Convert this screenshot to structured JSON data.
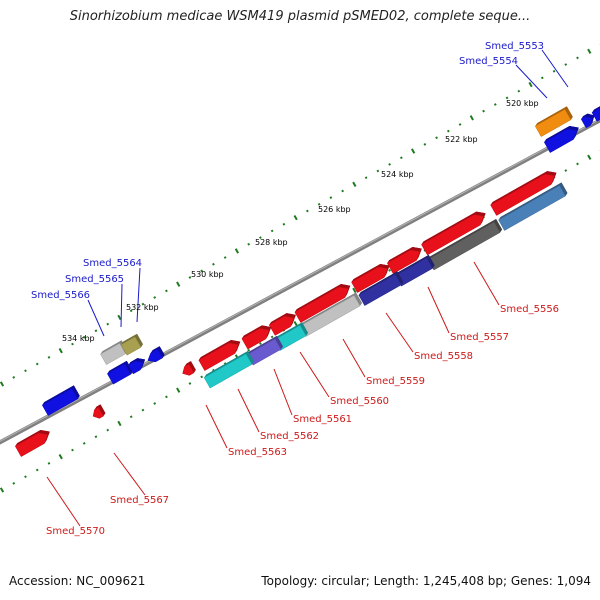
{
  "title": "Sinorhizobium medicae WSM419 plasmid pSMED02, complete seque...",
  "footer": {
    "accession": "Accession: NC_009621",
    "summary": "Topology: circular; Length: 1,245,408 bp; Genes: 1,094"
  },
  "colors": {
    "backbone": "#808080",
    "tick": "#1e7a1e",
    "cds": "#e8101a",
    "blue": "#1010e0",
    "blue_label": "#1a1acc",
    "red_label": "#cc1a1a",
    "orange": "#f08c10",
    "cyan": "#20c8c8",
    "steel": "#4a80b8",
    "navy": "#3030a0",
    "grey": "#606060",
    "lightgrey": "#c0c0c0",
    "olive": "#a8a050",
    "violet": "#6a5ad0"
  },
  "scale_labels": [
    "520 kbp",
    "522 kbp",
    "524 kbp",
    "526 kbp",
    "528 kbp",
    "530 kbp",
    "532 kbp",
    "534 kbp"
  ],
  "gene_labels_top": [
    "Smed_5553",
    "Smed_5554",
    "Smed_5564",
    "Smed_5565",
    "Smed_5566"
  ],
  "gene_labels_bottom": [
    "Smed_5556",
    "Smed_5557",
    "Smed_5558",
    "Smed_5559",
    "Smed_5560",
    "Smed_5561",
    "Smed_5562",
    "Smed_5563",
    "Smed_5567",
    "Smed_5570"
  ]
}
